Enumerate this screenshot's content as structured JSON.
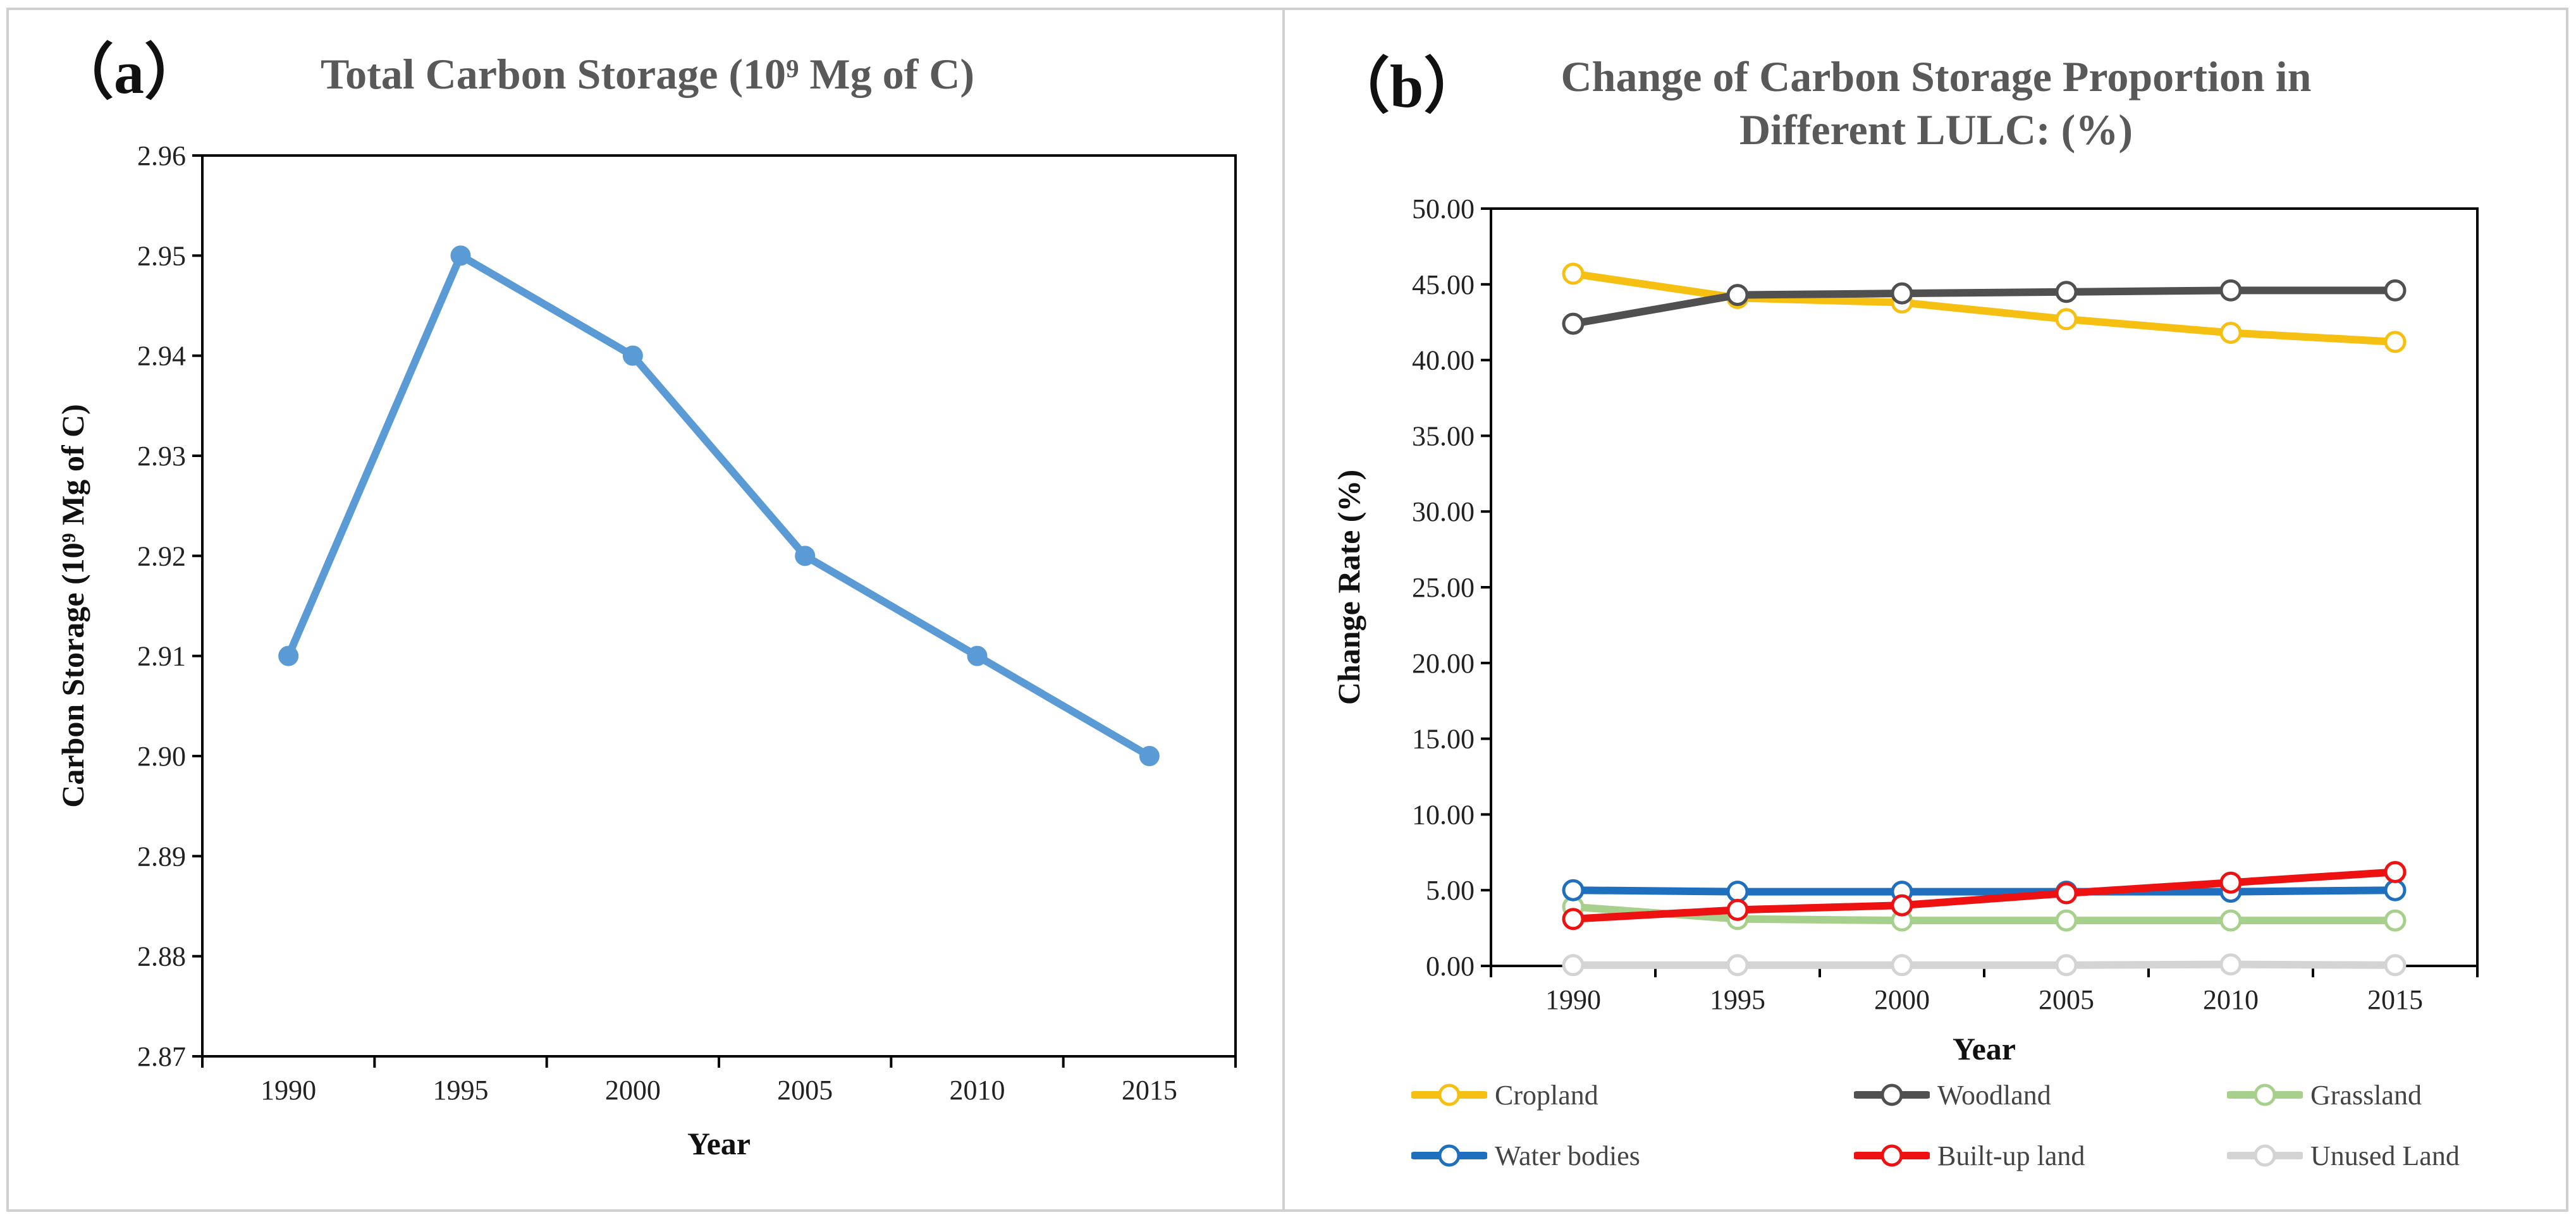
{
  "chart_data": [
    {
      "type": "line",
      "panel_label": "（a）",
      "title": "Total Carbon Storage (10⁹ Mg of C)",
      "xlabel": "Year",
      "ylabel": "Carbon Storage (10⁹ Mg of C)",
      "categories": [
        "1990",
        "1995",
        "2000",
        "2005",
        "2010",
        "2015"
      ],
      "ylim": [
        2.87,
        2.96
      ],
      "yticks": [
        "2.87",
        "2.88",
        "2.89",
        "2.90",
        "2.91",
        "2.92",
        "2.93",
        "2.94",
        "2.95",
        "2.96"
      ],
      "grid": false,
      "series": [
        {
          "name": "Total Carbon Storage",
          "color": "#5b9bd5",
          "values": [
            2.91,
            2.95,
            2.94,
            2.92,
            2.91,
            2.9
          ]
        }
      ]
    },
    {
      "type": "line",
      "panel_label": "（b）",
      "title_line1": "Change of Carbon Storage Proportion in",
      "title_line2": "Different LULC: (%)",
      "xlabel": "Year",
      "ylabel": "Change Rate (%)",
      "categories": [
        "1990",
        "1995",
        "2000",
        "2005",
        "2010",
        "2015"
      ],
      "ylim": [
        0,
        50
      ],
      "yticks": [
        "0.00",
        "5.00",
        "10.00",
        "15.00",
        "20.00",
        "25.00",
        "30.00",
        "35.00",
        "40.00",
        "45.00",
        "50.00"
      ],
      "grid": false,
      "legend_position": "bottom",
      "series": [
        {
          "name": "Cropland",
          "color": "#f5c011",
          "values": [
            45.7,
            44.1,
            43.8,
            42.7,
            41.8,
            41.2
          ]
        },
        {
          "name": "Woodland",
          "color": "#505050",
          "values": [
            42.4,
            44.3,
            44.4,
            44.5,
            44.6,
            44.6
          ]
        },
        {
          "name": "Grassland",
          "color": "#a8d08d",
          "values": [
            3.9,
            3.1,
            3.0,
            3.0,
            3.0,
            3.0
          ]
        },
        {
          "name": "Water bodies",
          "color": "#1f6fbf",
          "values": [
            5.0,
            4.9,
            4.9,
            4.9,
            4.9,
            5.0
          ]
        },
        {
          "name": "Built-up land",
          "color": "#ee1111",
          "values": [
            3.1,
            3.7,
            4.0,
            4.8,
            5.5,
            6.2
          ]
        },
        {
          "name": "Unused Land",
          "color": "#d4d4d4",
          "values": [
            0.05,
            0.05,
            0.05,
            0.05,
            0.1,
            0.05
          ]
        }
      ]
    }
  ]
}
